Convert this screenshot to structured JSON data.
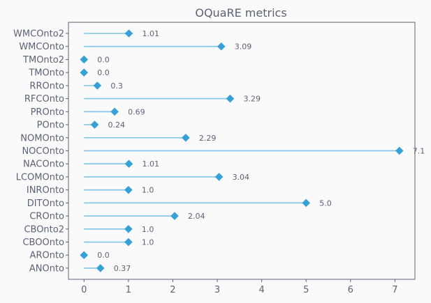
{
  "chart_data": {
    "type": "lollipop",
    "title": "OQuaRE metrics",
    "xlabel": "",
    "ylabel": "",
    "xlim": [
      -0.35,
      7.45
    ],
    "xticks": [
      0,
      1,
      2,
      3,
      4,
      5,
      6,
      7
    ],
    "grid": false,
    "colors": {
      "stem": "#7ec3e8",
      "marker": "#36a1d6",
      "text": "#5a6274",
      "background": "#fafafa"
    },
    "categories": [
      "WMCOnto2",
      "WMCOnto",
      "TMOnto2",
      "TMOnto",
      "RROnto",
      "RFCOnto",
      "PROnto",
      "POnto",
      "NOMOnto",
      "NOCOnto",
      "NACOnto",
      "LCOMOnto",
      "INROnto",
      "DITOnto",
      "CROnto",
      "CBOnto2",
      "CBOOnto",
      "AROnto",
      "ANOnto"
    ],
    "values": [
      1.01,
      3.09,
      0.0,
      0.0,
      0.3,
      3.29,
      0.69,
      0.24,
      2.29,
      7.1,
      1.01,
      3.04,
      1.0,
      5.0,
      2.04,
      1.0,
      1.0,
      0.0,
      0.37
    ],
    "value_labels": [
      "1.01",
      "3.09",
      "0.0",
      "0.0",
      "0.3",
      "3.29",
      "0.69",
      "0.24",
      "2.29",
      "7.1",
      "1.01",
      "3.04",
      "1.0",
      "5.0",
      "2.04",
      "1.0",
      "1.0",
      "0.0",
      "0.37"
    ]
  }
}
